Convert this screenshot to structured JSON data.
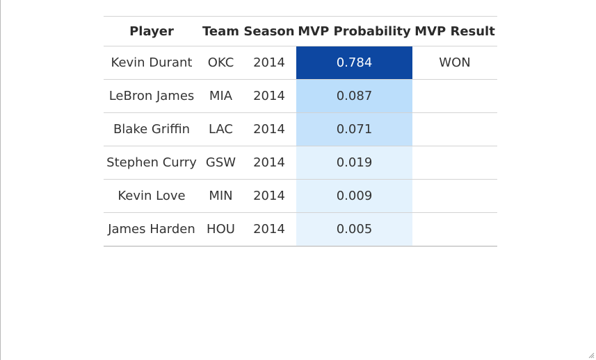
{
  "table": {
    "columns": [
      "Player",
      "Team",
      "Season",
      "MVP Probability",
      "MVP Result"
    ],
    "rows": [
      {
        "player": "Kevin Durant",
        "team": "OKC",
        "season": "2014",
        "probability": "0.784",
        "result": "WON"
      },
      {
        "player": "LeBron James",
        "team": "MIA",
        "season": "2014",
        "probability": "0.087",
        "result": ""
      },
      {
        "player": "Blake Griffin",
        "team": "LAC",
        "season": "2014",
        "probability": "0.071",
        "result": ""
      },
      {
        "player": "Stephen Curry",
        "team": "GSW",
        "season": "2014",
        "probability": "0.019",
        "result": ""
      },
      {
        "player": "Kevin Love",
        "team": "MIN",
        "season": "2014",
        "probability": "0.009",
        "result": ""
      },
      {
        "player": "James Harden",
        "team": "HOU",
        "season": "2014",
        "probability": "0.005",
        "result": ""
      }
    ]
  },
  "chart_data": {
    "type": "table",
    "columns": [
      "Player",
      "Team",
      "Season",
      "MVP Probability",
      "MVP Result"
    ],
    "values": [
      0.784,
      0.087,
      0.071,
      0.019,
      0.009,
      0.005
    ],
    "cell_colors": [
      "#0d47a1",
      "#bbdefb",
      "#c5e2fb",
      "#e3f2fd",
      "#e3f2fd",
      "#e7f3fd"
    ],
    "highlight_text_color": "#ffffff"
  }
}
